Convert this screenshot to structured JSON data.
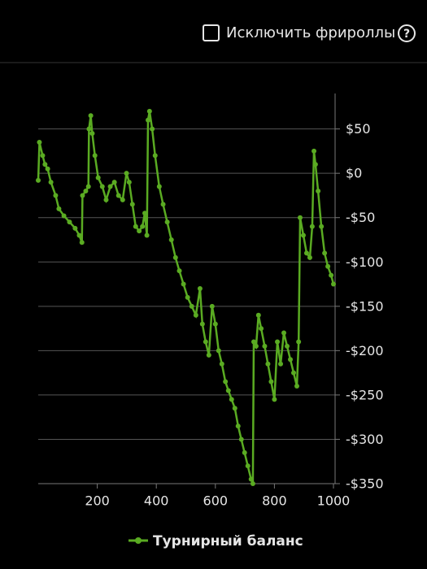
{
  "header": {
    "checkbox_label": "Исключить фрироллы",
    "help_icon": "?"
  },
  "chart_data": {
    "type": "line",
    "xlim": [
      0,
      1000
    ],
    "xticks": [
      200,
      400,
      600,
      800,
      1000
    ],
    "ylim": [
      -350,
      90
    ],
    "yticks": [
      {
        "value": -350,
        "label": "-$350"
      },
      {
        "value": -300,
        "label": "-$300"
      },
      {
        "value": -250,
        "label": "-$250"
      },
      {
        "value": -200,
        "label": "-$200"
      },
      {
        "value": -150,
        "label": "-$150"
      },
      {
        "value": -100,
        "label": "-$100"
      },
      {
        "value": -50,
        "label": "-$50"
      },
      {
        "value": 0,
        "label": "$0"
      },
      {
        "value": 50,
        "label": "$50"
      }
    ],
    "grid": true,
    "legend": "bottom",
    "x": [
      0,
      4,
      15,
      23,
      32,
      43,
      59,
      70,
      87,
      106,
      125,
      139,
      148,
      150,
      161,
      170,
      172,
      178,
      183,
      192,
      203,
      217,
      230,
      244,
      258,
      272,
      286,
      299,
      308,
      319,
      330,
      342,
      353,
      361,
      368,
      372,
      377,
      386,
      396,
      410,
      423,
      437,
      451,
      465,
      478,
      492,
      506,
      520,
      534,
      548,
      556,
      567,
      578,
      589,
      600,
      611,
      622,
      634,
      644,
      655,
      666,
      677,
      688,
      699,
      710,
      721,
      727,
      730,
      738,
      746,
      755,
      767,
      778,
      789,
      800,
      810,
      821,
      832,
      843,
      854,
      865,
      876,
      882,
      887,
      898,
      909,
      920,
      928,
      934,
      939,
      948,
      959,
      970,
      981,
      992,
      1000
    ],
    "series": [
      {
        "name": "Турнирный баланс",
        "color": "#5aab22",
        "values": [
          -8,
          35,
          20,
          10,
          5,
          -10,
          -25,
          -40,
          -48,
          -55,
          -62,
          -70,
          -78,
          -25,
          -20,
          -15,
          50,
          65,
          45,
          20,
          -5,
          -15,
          -30,
          -15,
          -10,
          -25,
          -30,
          0,
          -10,
          -35,
          -60,
          -65,
          -60,
          -45,
          -70,
          60,
          70,
          50,
          20,
          -15,
          -35,
          -55,
          -75,
          -95,
          -110,
          -125,
          -140,
          -150,
          -160,
          -130,
          -170,
          -190,
          -205,
          -150,
          -170,
          -200,
          -215,
          -235,
          -245,
          -255,
          -265,
          -285,
          -300,
          -315,
          -330,
          -345,
          -350,
          -190,
          -195,
          -160,
          -175,
          -195,
          -215,
          -235,
          -255,
          -190,
          -215,
          -180,
          -195,
          -210,
          -225,
          -240,
          -190,
          -50,
          -70,
          -90,
          -95,
          -60,
          25,
          10,
          -20,
          -60,
          -90,
          -105,
          -115,
          -125
        ]
      }
    ]
  }
}
